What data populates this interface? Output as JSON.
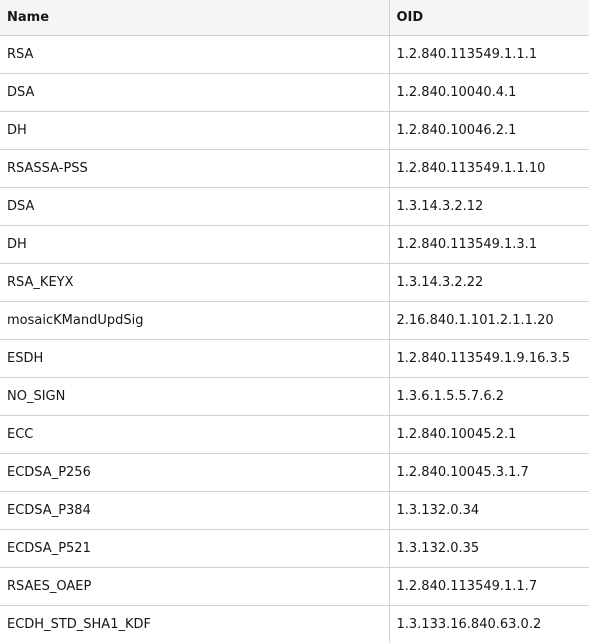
{
  "table": {
    "headers": [
      "Name",
      "OID"
    ],
    "rows": [
      {
        "name": "RSA",
        "oid": "1.2.840.113549.1.1.1"
      },
      {
        "name": "DSA",
        "oid": "1.2.840.10040.4.1"
      },
      {
        "name": "DH",
        "oid": "1.2.840.10046.2.1"
      },
      {
        "name": "RSASSA-PSS",
        "oid": "1.2.840.113549.1.1.10"
      },
      {
        "name": "DSA",
        "oid": "1.3.14.3.2.12"
      },
      {
        "name": "DH",
        "oid": "1.2.840.113549.1.3.1"
      },
      {
        "name": "RSA_KEYX",
        "oid": "1.3.14.3.2.22"
      },
      {
        "name": "mosaicKMandUpdSig",
        "oid": "2.16.840.1.101.2.1.1.20"
      },
      {
        "name": "ESDH",
        "oid": "1.2.840.113549.1.9.16.3.5"
      },
      {
        "name": "NO_SIGN",
        "oid": "1.3.6.1.5.5.7.6.2"
      },
      {
        "name": "ECC",
        "oid": "1.2.840.10045.2.1"
      },
      {
        "name": "ECDSA_P256",
        "oid": "1.2.840.10045.3.1.7"
      },
      {
        "name": "ECDSA_P384",
        "oid": "1.3.132.0.34"
      },
      {
        "name": "ECDSA_P521",
        "oid": "1.3.132.0.35"
      },
      {
        "name": "RSAES_OAEP",
        "oid": "1.2.840.113549.1.1.7"
      },
      {
        "name": "ECDH_STD_SHA1_KDF",
        "oid": "1.3.133.16.840.63.0.2"
      }
    ]
  }
}
